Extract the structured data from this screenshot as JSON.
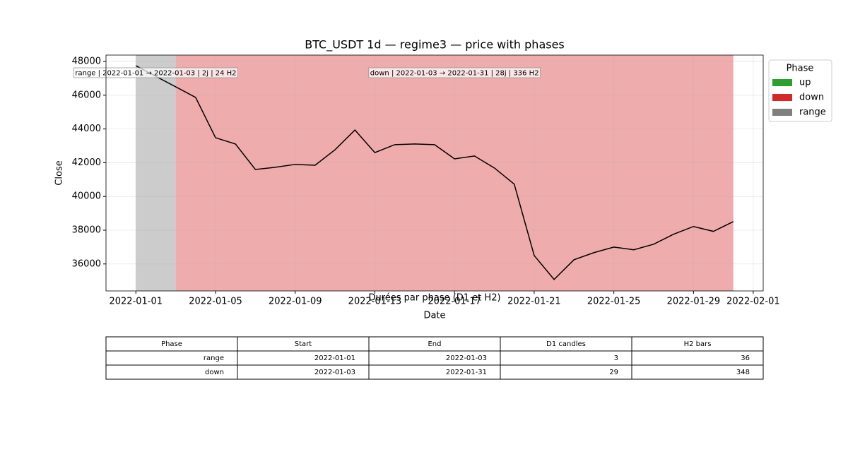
{
  "chart_data": {
    "type": "line",
    "title": "BTC_USDT 1d — regime3 — price with phases",
    "xlabel": "Date",
    "ylabel": "Close",
    "x": [
      "2022-01-01",
      "2022-01-02",
      "2022-01-03",
      "2022-01-04",
      "2022-01-05",
      "2022-01-06",
      "2022-01-07",
      "2022-01-08",
      "2022-01-09",
      "2022-01-10",
      "2022-01-11",
      "2022-01-12",
      "2022-01-13",
      "2022-01-14",
      "2022-01-15",
      "2022-01-16",
      "2022-01-17",
      "2022-01-18",
      "2022-01-19",
      "2022-01-20",
      "2022-01-21",
      "2022-01-22",
      "2022-01-23",
      "2022-01-24",
      "2022-01-25",
      "2022-01-26",
      "2022-01-27",
      "2022-01-28",
      "2022-01-29",
      "2022-01-30",
      "2022-01-31"
    ],
    "series": [
      {
        "name": "Close",
        "color": "#000000",
        "values": [
          47750,
          47120,
          46500,
          45870,
          43480,
          43110,
          41600,
          41730,
          41900,
          41850,
          42770,
          43940,
          42600,
          43070,
          43110,
          43070,
          42230,
          42400,
          41690,
          40730,
          36500,
          35080,
          36250,
          36670,
          37000,
          36840,
          37170,
          37760,
          38220,
          37930,
          38510
        ]
      }
    ],
    "xlim": [
      "2021-12-30T12:00",
      "2022-02-01T12:00"
    ],
    "xticks": [
      "2022-01-01",
      "2022-01-05",
      "2022-01-09",
      "2022-01-13",
      "2022-01-17",
      "2022-01-21",
      "2022-01-25",
      "2022-01-29",
      "2022-02-01"
    ],
    "ylim": [
      34400,
      48380
    ],
    "yticks": [
      36000,
      38000,
      40000,
      42000,
      44000,
      46000,
      48000
    ],
    "grid": true,
    "phases": [
      {
        "name": "range",
        "start": "2022-01-01",
        "end": "2022-01-03",
        "color": "#cccccc",
        "label": "range | 2022-01-01 → 2022-01-03 | 2j | 24 H2"
      },
      {
        "name": "down",
        "start": "2022-01-03",
        "end": "2022-01-31",
        "color": "#efacac",
        "label": "down | 2022-01-03 → 2022-01-31 | 28j | 336 H2"
      }
    ],
    "legend": {
      "title": "Phase",
      "position": "outside right",
      "entries": [
        {
          "name": "up",
          "color": "#2ca02c"
        },
        {
          "name": "down",
          "color": "#d62728"
        },
        {
          "name": "range",
          "color": "#7f7f7f"
        }
      ]
    }
  },
  "table": {
    "title": "Durées par phase (D1 et H2)",
    "columns": [
      "Phase",
      "Start",
      "End",
      "D1 candles",
      "H2 bars"
    ],
    "rows": [
      [
        "range",
        "2022-01-01",
        "2022-01-03",
        3,
        36
      ],
      [
        "down",
        "2022-01-03",
        "2022-01-31",
        29,
        348
      ]
    ]
  }
}
